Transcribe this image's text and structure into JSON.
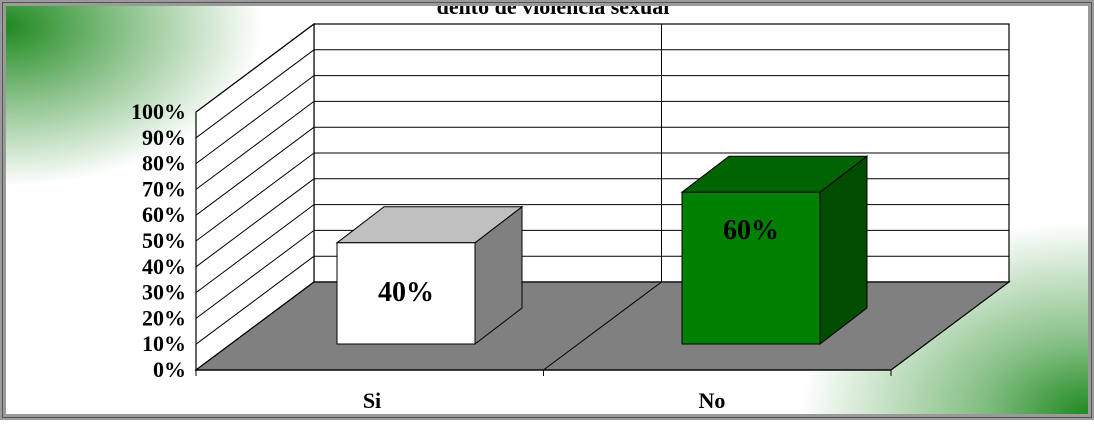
{
  "chart_data": {
    "type": "bar",
    "title": "delito de violencia sexual",
    "categories": [
      "Si",
      "No"
    ],
    "values": [
      40,
      60
    ],
    "data_labels": [
      "40%",
      "60%"
    ],
    "y_ticks": [
      "0%",
      "10%",
      "20%",
      "30%",
      "40%",
      "50%",
      "60%",
      "70%",
      "80%",
      "90%",
      "100%"
    ],
    "ylim": [
      0,
      100
    ],
    "grid": true,
    "style": "3d-column",
    "colors": {
      "Si_front": "#ffffff",
      "Si_top": "#c0c0c0",
      "Si_side": "#808080",
      "No_front": "#008000",
      "No_top": "#006400",
      "No_side": "#004d00",
      "floor": "#808080",
      "background_accent": "#1f8a1f"
    }
  }
}
